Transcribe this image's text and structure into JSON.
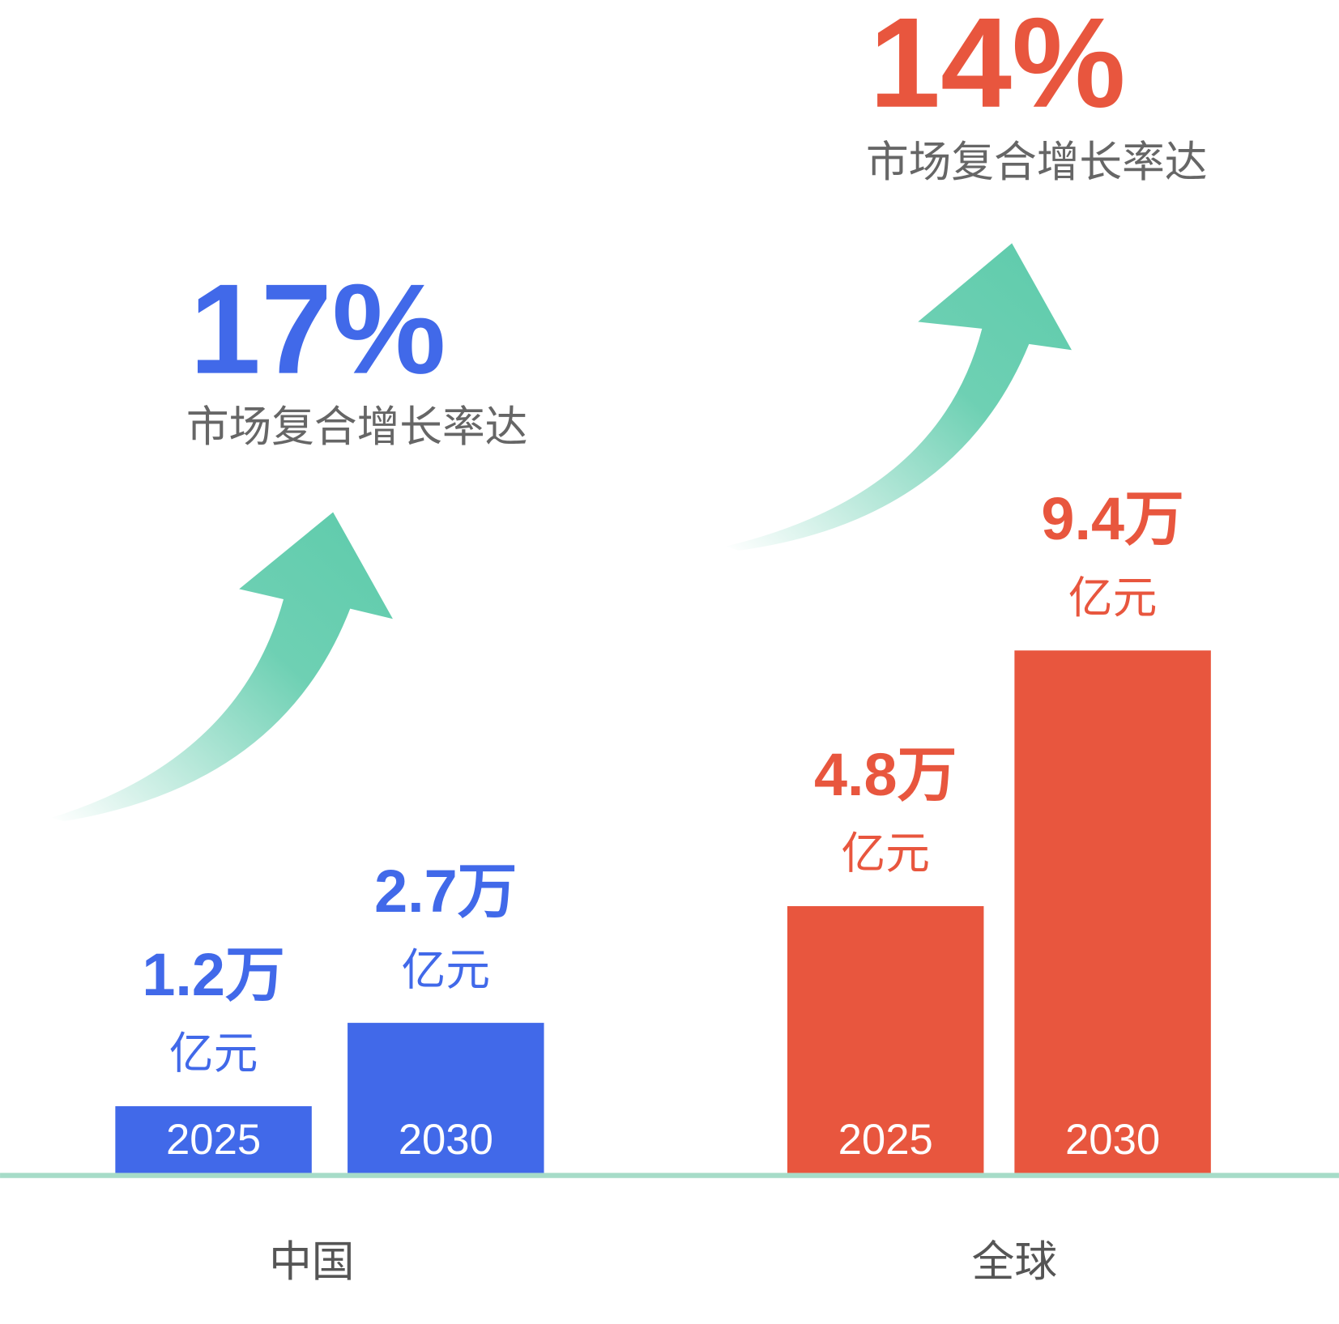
{
  "chart_data": {
    "type": "bar",
    "unit": "亿元",
    "groups": [
      {
        "name": "中国",
        "color": "#4169e9",
        "growth_rate": 17,
        "growth_rate_label": "17%",
        "growth_caption": "市场复合增长率达",
        "categories": [
          "2025",
          "2030"
        ],
        "values": [
          12000,
          27000
        ],
        "value_labels": [
          "1.2万",
          "2.7万"
        ]
      },
      {
        "name": "全球",
        "color": "#e8563e",
        "growth_rate": 14,
        "growth_rate_label": "14%",
        "growth_caption": "市场复合增长率达",
        "categories": [
          "2025",
          "2030"
        ],
        "values": [
          48000,
          94000
        ],
        "value_labels": [
          "4.8万",
          "9.4万"
        ]
      }
    ]
  }
}
